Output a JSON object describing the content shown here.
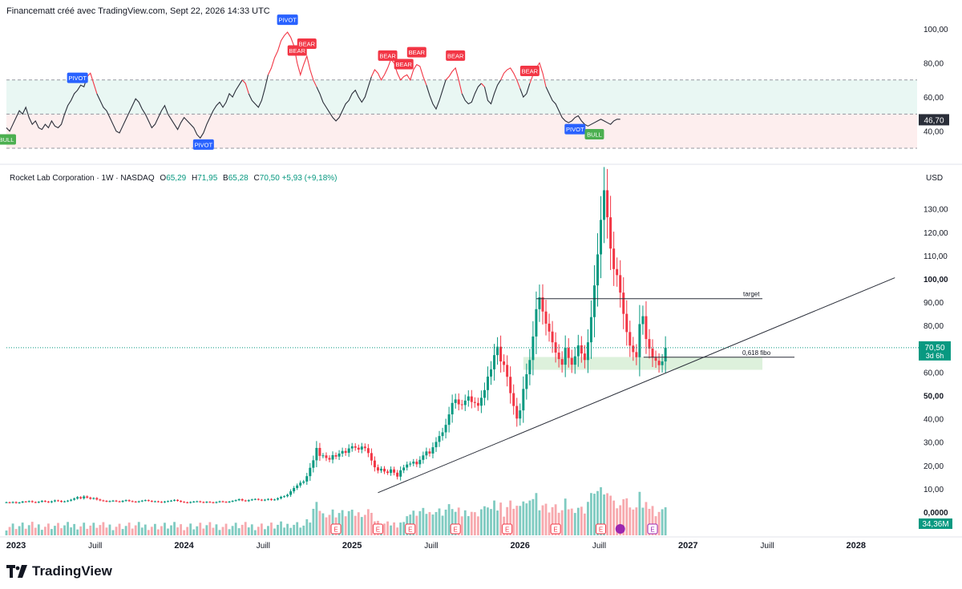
{
  "header": {
    "attribution": "Financematt créé avec TradingView.com, Sept 22, 2026 14:33 UTC"
  },
  "legend": {
    "symbol": "Rocket Lab Corporation · 1W · NASDAQ",
    "o_label": "O",
    "o": "65,29",
    "h_label": "H",
    "h": "71,95",
    "l_label": "B",
    "l": "65,28",
    "c_label": "C",
    "c": "70,50",
    "change": "+5,93 (+9,18%)"
  },
  "branding": {
    "name": "TradingView"
  },
  "colors": {
    "up": "#089981",
    "down": "#f23645",
    "vol_up": "#7fcbc1",
    "vol_down": "#f7a9ae",
    "pivot": "#2962ff",
    "bear": "#f23645",
    "bull": "#4caf50",
    "zone": "#d7eed6",
    "overbought_fill": "#e9f7f3",
    "oversold_fill": "#fdeeee",
    "rsi_line": "#2a2e39"
  },
  "chart_data": [
    {
      "type": "line",
      "name": "oscillator",
      "ylim": [
        28,
        100
      ],
      "yticks": [
        "100,00",
        "80,00",
        "60,00",
        "40,00"
      ],
      "yticks_values": [
        100,
        80,
        60,
        40
      ],
      "levels": [
        70,
        50,
        30
      ],
      "last_value": "46,70",
      "series": [
        {
          "name": "",
          "x": [
            0,
            1,
            2,
            3,
            4,
            5,
            6,
            7,
            8,
            9,
            10,
            11,
            12,
            13,
            14,
            15,
            16,
            17,
            18,
            19,
            20,
            21,
            22,
            23,
            24,
            25,
            26,
            27,
            28,
            29,
            30,
            31,
            32,
            33,
            34,
            35,
            36,
            37,
            38,
            39,
            40,
            41,
            42,
            43,
            44,
            45,
            46,
            47,
            48,
            49,
            50,
            51,
            52,
            53,
            54,
            55,
            56,
            57,
            58,
            59,
            60,
            61,
            62,
            63,
            64,
            65,
            66,
            67,
            68,
            69,
            70,
            71,
            72,
            73,
            74,
            75,
            76,
            77,
            78,
            79,
            80,
            81,
            82,
            83,
            84,
            85,
            86,
            87,
            88,
            89,
            90,
            91,
            92,
            93,
            94,
            95,
            96,
            97,
            98,
            99,
            100,
            101,
            102,
            103,
            104,
            105,
            106,
            107,
            108,
            109,
            110,
            111,
            112,
            113,
            114,
            115,
            116,
            117,
            118,
            119,
            120,
            121,
            122,
            123,
            124,
            125,
            126,
            127,
            128,
            129,
            130,
            131,
            132,
            133,
            134,
            135,
            136,
            137,
            138,
            139,
            140,
            141,
            142,
            143,
            144,
            145,
            146,
            147,
            148,
            149,
            150,
            151,
            152,
            153,
            154,
            155,
            156,
            157,
            158,
            159,
            160,
            161,
            162,
            163,
            164,
            165,
            166,
            167,
            168,
            169,
            170,
            171,
            172,
            173,
            174,
            175,
            176,
            177,
            178,
            179,
            180,
            181,
            182,
            183,
            184,
            185,
            186,
            187,
            188,
            189,
            190
          ],
          "y": [
            42,
            40,
            44,
            48,
            52,
            50,
            54,
            48,
            44,
            46,
            42,
            41,
            44,
            42,
            46,
            43,
            42,
            44,
            50,
            55,
            58,
            62,
            64,
            67,
            66,
            72,
            74,
            68,
            62,
            58,
            54,
            52,
            48,
            44,
            40,
            39,
            43,
            47,
            51,
            55,
            59,
            57,
            53,
            50,
            46,
            42,
            44,
            48,
            52,
            55,
            50,
            47,
            44,
            41,
            45,
            48,
            46,
            44,
            42,
            38,
            36,
            39,
            44,
            48,
            52,
            55,
            57,
            54,
            57,
            62,
            60,
            64,
            67,
            70,
            68,
            62,
            58,
            56,
            54,
            58,
            65,
            73,
            77,
            83,
            87,
            93,
            96,
            98,
            95,
            90,
            80,
            73,
            79,
            84,
            76,
            70,
            66,
            62,
            57,
            54,
            51,
            48,
            46,
            48,
            52,
            56,
            58,
            62,
            64,
            60,
            57,
            60,
            66,
            72,
            76,
            74,
            70,
            73,
            77,
            82,
            80,
            74,
            70,
            72,
            73,
            70,
            76,
            79,
            78,
            72,
            67,
            61,
            56,
            53,
            58,
            64,
            70,
            72,
            75,
            77,
            70,
            62,
            58,
            56,
            57,
            62,
            66,
            68,
            66,
            58,
            56,
            62,
            67,
            70,
            74,
            76,
            77,
            74,
            70,
            65,
            60,
            62,
            68,
            73,
            77,
            80,
            74,
            66,
            62,
            58,
            56,
            52,
            48,
            46,
            45,
            46,
            48,
            49,
            46,
            44,
            43,
            44,
            45,
            46,
            47,
            46,
            45,
            44,
            46,
            47,
            47
          ]
        }
      ],
      "annotations": [
        {
          "label": "BULL",
          "x": 0
        },
        {
          "label": "PIVOT",
          "x": 22
        },
        {
          "label": "PIVOT",
          "x": 61
        },
        {
          "label": "PIVOT",
          "x": 87
        },
        {
          "label": "BEAR",
          "x": 90
        },
        {
          "label": "BEAR",
          "x": 93
        },
        {
          "label": "BEAR",
          "x": 118
        },
        {
          "label": "BEAR",
          "x": 123
        },
        {
          "label": "BEAR",
          "x": 127
        },
        {
          "label": "BEAR",
          "x": 139
        },
        {
          "label": "BEAR",
          "x": 162
        },
        {
          "label": "PIVOT",
          "x": 176
        },
        {
          "label": "BULL",
          "x": 182
        }
      ]
    },
    {
      "type": "candlestick",
      "name": "Rocket Lab Corporation",
      "unit": "USD",
      "ylim": [
        -8,
        152
      ],
      "yticks": [
        "130,00",
        "120,00",
        "110,00",
        "100,00",
        "90,00",
        "80,00",
        "70,00",
        "60,00",
        "50,00",
        "40,00",
        "30,00",
        "20,00",
        "10,00",
        "0,0000"
      ],
      "yticks_values": [
        130,
        120,
        110,
        100,
        90,
        80,
        70,
        60,
        50,
        40,
        30,
        20,
        10,
        0
      ],
      "last_price": "70,50",
      "countdown": "3d 6h",
      "last_volume": "34,36M",
      "x_tick_labels": [
        "2023",
        "Juill",
        "2024",
        "Juill",
        "2025",
        "Juill",
        "2026",
        "Juill",
        "2027",
        "Juill",
        "2028"
      ],
      "x_tick_weeks": [
        0,
        26,
        52,
        78,
        104,
        130,
        156,
        182,
        208,
        234,
        260
      ],
      "closes": [
        4.2,
        4.0,
        4.3,
        3.9,
        4.1,
        4.5,
        4.4,
        4.7,
        4.3,
        4.1,
        4.4,
        4.8,
        4.5,
        4.2,
        4.6,
        5.0,
        4.8,
        4.4,
        4.6,
        4.9,
        5.3,
        5.8,
        6.4,
        5.9,
        6.7,
        6.2,
        5.7,
        6.0,
        5.4,
        5.0,
        4.8,
        4.5,
        4.7,
        4.9,
        4.6,
        4.4,
        4.8,
        5.1,
        4.7,
        4.5,
        4.3,
        4.6,
        4.9,
        5.1,
        4.8,
        4.5,
        4.6,
        4.4,
        4.2,
        4.5,
        4.7,
        4.9,
        5.2,
        4.8,
        4.4,
        4.2,
        4.0,
        4.3,
        4.5,
        4.6,
        4.3,
        4.1,
        4.4,
        4.2,
        4.0,
        4.3,
        4.6,
        4.4,
        4.2,
        4.5,
        4.8,
        5.1,
        5.5,
        5.0,
        4.7,
        5.1,
        5.4,
        5.6,
        5.3,
        5.0,
        5.3,
        5.6,
        5.2,
        5.4,
        5.9,
        6.5,
        6.8,
        7.4,
        8.9,
        10.3,
        11.4,
        12.6,
        13.1,
        15.4,
        19.0,
        22.2,
        27.5,
        24.1,
        24.3,
        23.2,
        22.5,
        24.4,
        23.8,
        25.1,
        26.2,
        25.4,
        27.3,
        28.2,
        27.6,
        26.8,
        28.1,
        27.4,
        25.3,
        22.1,
        19.2,
        17.8,
        18.6,
        17.4,
        16.8,
        18.3,
        16.9,
        15.2,
        17.9,
        19.1,
        20.4,
        20.8,
        21.6,
        20.5,
        22.4,
        24.3,
        26.0,
        25.1,
        27.8,
        30.1,
        32.6,
        34.2,
        37.4,
        41.9,
        46.8,
        48.3,
        46.2,
        45.9,
        47.8,
        49.6,
        47.2,
        46.8,
        45.6,
        49.0,
        52.3,
        58.1,
        61.2,
        67.3,
        70.9,
        64.6,
        63.1,
        58.0,
        51.0,
        45.5,
        40.1,
        43.6,
        52.8,
        59.1,
        65.2,
        75.3,
        87.0,
        92.1,
        86.0,
        80.8,
        77.4,
        72.8,
        68.4,
        65.6,
        63.2,
        70.4,
        66.1,
        63.2,
        66.8,
        71.5,
        68.0,
        65.2,
        72.8,
        83.6,
        97.2,
        110.5,
        125.3,
        138.0,
        126.4,
        113.0,
        104.2,
        101.6,
        94.1,
        85.0,
        77.2,
        71.4,
        68.6,
        66.4,
        80.6,
        84.0,
        74.2,
        70.1,
        66.2,
        64.9,
        63.0,
        64.6,
        70.5
      ]
    }
  ],
  "drawings": {
    "target_label": "target",
    "target_value": 91.5,
    "target_from_week": 164,
    "target_to_week": 234,
    "fibo_label": "0,618 fibo",
    "fibo_value": 66.4,
    "zone_low": 61.0,
    "zone_high": 66.5,
    "zone_from_week": 160,
    "zone_to_week": 234,
    "trendline": [
      [
        115,
        8.3
      ],
      [
        275,
        100.5
      ]
    ]
  },
  "earnings_marker": "E"
}
